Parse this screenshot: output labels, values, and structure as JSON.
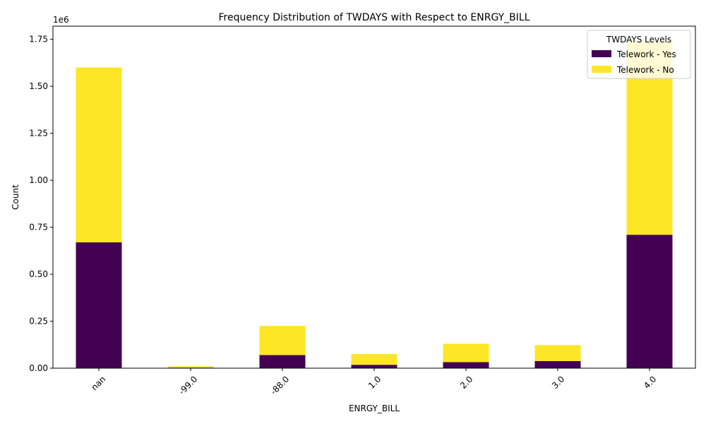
{
  "chart_data": {
    "type": "bar",
    "stacked": true,
    "title": "Frequency Distribution of TWDAYS with Respect to ENRGY_BILL",
    "xlabel": "ENRGY_BILL",
    "ylabel": "Count",
    "y_offset_label": "1e6",
    "categories": [
      "nan",
      "-99.0",
      "-88.0",
      "1.0",
      "2.0",
      "3.0",
      "4.0"
    ],
    "ylim": [
      0,
      1820000
    ],
    "yticks": [
      0,
      250000,
      500000,
      750000,
      1000000,
      1250000,
      1500000,
      1750000
    ],
    "ytick_labels": [
      "0.00",
      "0.25",
      "0.50",
      "0.75",
      "1.00",
      "1.25",
      "1.50",
      "1.75"
    ],
    "series": [
      {
        "name": "Telework - Yes",
        "color": "#440154",
        "values": [
          670000,
          3000,
          70000,
          18000,
          32000,
          38000,
          710000
        ]
      },
      {
        "name": "Telework - No",
        "color": "#fde725",
        "values": [
          930000,
          7000,
          155000,
          57000,
          98000,
          85000,
          1030000
        ]
      }
    ],
    "legend": {
      "title": "TWDAYS Levels",
      "placement": "top-right"
    },
    "grid": false
  }
}
